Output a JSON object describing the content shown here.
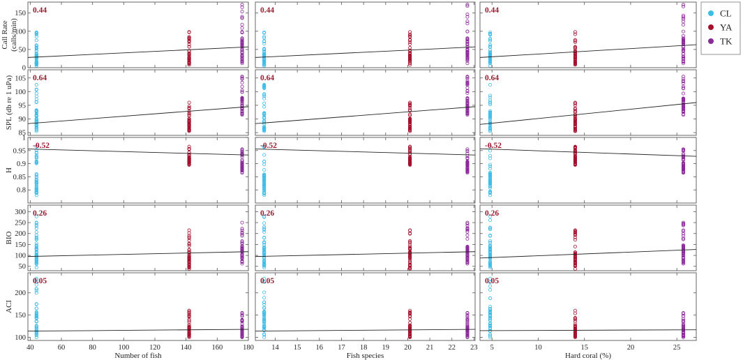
{
  "chart_data": {
    "type": "scatter",
    "legend": {
      "placement": "top-right",
      "entries": [
        {
          "name": "CL",
          "color": "#3bbde8"
        },
        {
          "name": "YA",
          "color": "#a3122d"
        },
        {
          "name": "TK",
          "color": "#8b2a9a"
        }
      ]
    },
    "columns": [
      {
        "xlabel": "Number of fish",
        "xlim": [
          38.5,
          180
        ],
        "xticks": [
          40,
          60,
          80,
          100,
          120,
          140,
          160,
          180
        ],
        "site_x": {
          "CL": 44,
          "YA": 142,
          "TK": 176
        }
      },
      {
        "xlabel": "Fish species",
        "xlim": [
          13.1,
          23.05
        ],
        "xticks": [
          14,
          15,
          16,
          17,
          18,
          19,
          20,
          21,
          22,
          23
        ],
        "site_x": {
          "CL": 13.5,
          "YA": 20.1,
          "TK": 22.7
        }
      },
      {
        "xlabel": "Hard coral (%)",
        "xlim": [
          3.7,
          27.1
        ],
        "xticks": [
          5,
          10,
          15,
          20,
          25
        ],
        "site_x": {
          "CL": 4.8,
          "YA": 14.0,
          "TK": 25.7
        }
      }
    ],
    "rows": [
      {
        "ylabel": "Call Rate\n(calls/min)",
        "ylim": [
          0,
          180
        ],
        "yticks": [
          0,
          50,
          100,
          150
        ],
        "r": "0.44",
        "site_range": {
          "CL": [
            5,
            97
          ],
          "YA": [
            8,
            98
          ],
          "TK": [
            12,
            173
          ]
        },
        "trend": [
          [
            28,
            57
          ],
          [
            28,
            57
          ],
          [
            28,
            63
          ]
        ]
      },
      {
        "ylabel": "SPL (db re 1 uPa)",
        "ylim": [
          84,
          108
        ],
        "yticks": [
          85,
          90,
          95,
          100,
          105
        ],
        "r": "0.64",
        "site_range": {
          "CL": [
            85.5,
            102.5
          ],
          "YA": [
            85.5,
            96
          ],
          "TK": [
            91.5,
            105.5
          ]
        },
        "trend": [
          [
            88.3,
            94.5
          ],
          [
            88.3,
            94.5
          ],
          [
            88.0,
            96.0
          ]
        ]
      },
      {
        "ylabel": "H",
        "ylim": [
          0.75,
          1.0
        ],
        "yticks": [
          0.8,
          0.85,
          0.9,
          0.95,
          1
        ],
        "r": "-0.52",
        "site_range": {
          "CL": [
            0.78,
            0.965
          ],
          "YA": [
            0.895,
            0.965
          ],
          "TK": [
            0.865,
            0.955
          ]
        },
        "trend": [
          [
            0.956,
            0.933
          ],
          [
            0.956,
            0.933
          ],
          [
            0.957,
            0.928
          ]
        ]
      },
      {
        "ylabel": "BIO",
        "ylim": [
          30,
          330
        ],
        "yticks": [
          50,
          100,
          150,
          200,
          250,
          300
        ],
        "r": "0.26",
        "site_range": {
          "CL": [
            45,
            278
          ],
          "YA": [
            38,
            215
          ],
          "TK": [
            62,
            250
          ]
        },
        "trend": [
          [
            95,
            117
          ],
          [
            95,
            117
          ],
          [
            88,
            127
          ]
        ]
      },
      {
        "ylabel": "ACI",
        "ylim": [
          93,
          245
        ],
        "yticks": [
          100,
          150,
          200
        ],
        "r": "0.05",
        "site_range": {
          "CL": [
            100,
            232
          ],
          "YA": [
            100,
            160
          ],
          "TK": [
            100,
            155
          ]
        },
        "trend": [
          [
            114,
            118
          ],
          [
            114,
            118
          ],
          [
            115,
            117
          ]
        ]
      }
    ]
  }
}
